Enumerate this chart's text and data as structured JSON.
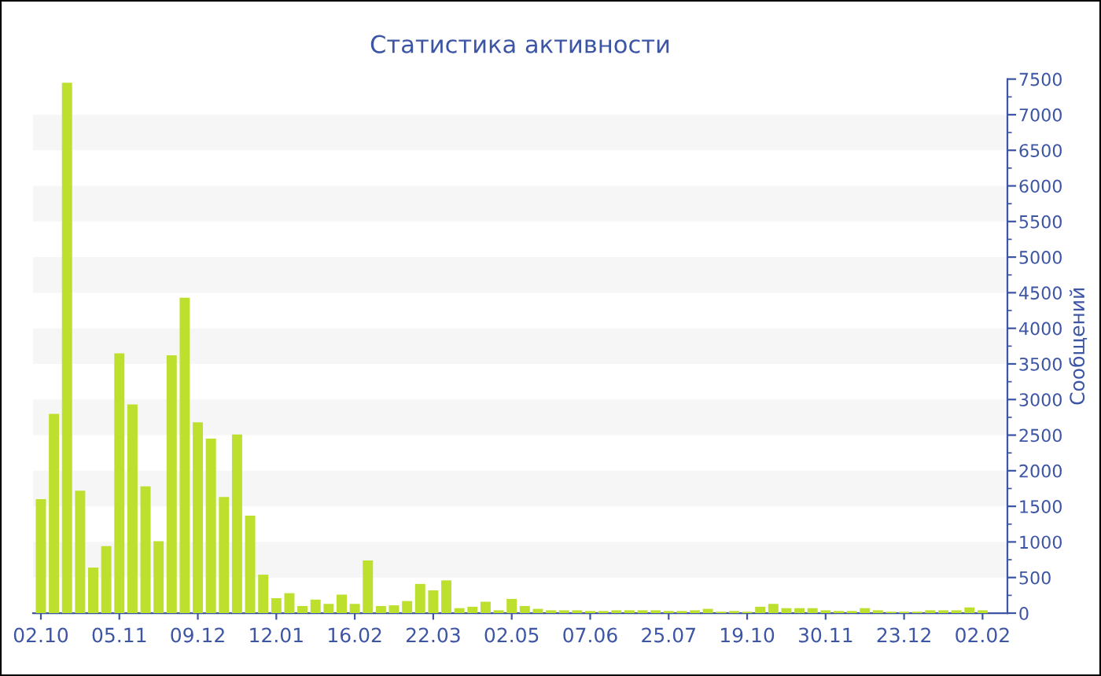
{
  "chart_data": {
    "type": "bar",
    "title": "Статистика активности",
    "ylabel": "Сообщений",
    "categories": [
      "02.10",
      null,
      null,
      null,
      null,
      null,
      "05.11",
      null,
      null,
      null,
      null,
      null,
      "09.12",
      null,
      null,
      null,
      null,
      null,
      "12.01",
      null,
      null,
      null,
      null,
      null,
      "16.02",
      null,
      null,
      null,
      null,
      null,
      "22.03",
      null,
      null,
      null,
      null,
      null,
      "02.05",
      null,
      null,
      null,
      null,
      null,
      "07.06",
      null,
      null,
      null,
      null,
      null,
      "25.07",
      null,
      null,
      null,
      null,
      null,
      "19.10",
      null,
      null,
      null,
      null,
      null,
      "30.11",
      null,
      null,
      null,
      null,
      null,
      "23.12",
      null,
      null,
      null,
      null,
      null,
      "02.02"
    ],
    "values": [
      1600,
      2800,
      7450,
      1720,
      640,
      940,
      3650,
      2930,
      1780,
      1010,
      3620,
      4430,
      2680,
      2450,
      1630,
      2510,
      1370,
      540,
      210,
      280,
      100,
      190,
      130,
      260,
      130,
      740,
      100,
      110,
      170,
      410,
      320,
      460,
      70,
      90,
      160,
      40,
      200,
      100,
      60,
      40,
      40,
      40,
      30,
      30,
      40,
      40,
      40,
      40,
      30,
      30,
      40,
      60,
      20,
      30,
      20,
      90,
      130,
      70,
      70,
      70,
      40,
      30,
      30,
      70,
      40,
      20,
      20,
      20,
      40,
      40,
      40,
      80,
      40
    ],
    "color": "#bde02e",
    "ylim": [
      0,
      7500
    ],
    "yticks": [
      0,
      500,
      1000,
      1500,
      2000,
      2500,
      3000,
      3500,
      4000,
      4500,
      5000,
      5500,
      6000,
      6500,
      7000,
      7500
    ],
    "bands": [
      {
        "axis": "y",
        "from": 500,
        "to": 1000,
        "color": "#f6f6f6"
      },
      {
        "axis": "y",
        "from": 1500,
        "to": 2000,
        "color": "#f6f6f6"
      },
      {
        "axis": "y",
        "from": 2500,
        "to": 3000,
        "color": "#f6f6f6"
      },
      {
        "axis": "y",
        "from": 3500,
        "to": 4000,
        "color": "#f6f6f6"
      },
      {
        "axis": "y",
        "from": 4500,
        "to": 5000,
        "color": "#f6f6f6"
      },
      {
        "axis": "y",
        "from": 5500,
        "to": 6000,
        "color": "#f6f6f6"
      },
      {
        "axis": "y",
        "from": 6500,
        "to": 7000,
        "color": "#f6f6f6"
      }
    ]
  }
}
